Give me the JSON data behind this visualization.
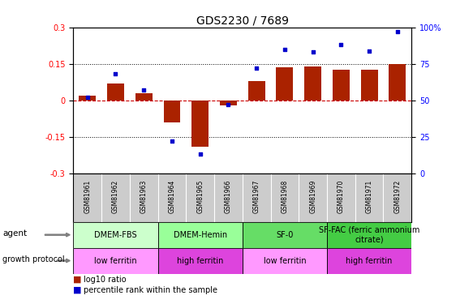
{
  "title": "GDS2230 / 7689",
  "samples": [
    "GSM81961",
    "GSM81962",
    "GSM81963",
    "GSM81964",
    "GSM81965",
    "GSM81966",
    "GSM81967",
    "GSM81968",
    "GSM81969",
    "GSM81970",
    "GSM81971",
    "GSM81972"
  ],
  "log10_ratio": [
    0.02,
    0.07,
    0.03,
    -0.09,
    -0.19,
    -0.02,
    0.08,
    0.135,
    0.14,
    0.125,
    0.125,
    0.15
  ],
  "percentile_rank": [
    52,
    68,
    57,
    22,
    13,
    47,
    72,
    85,
    83,
    88,
    84,
    97
  ],
  "ylim_left": [
    -0.3,
    0.3
  ],
  "ylim_right": [
    0,
    100
  ],
  "yticks_left": [
    -0.3,
    -0.15,
    0,
    0.15,
    0.3
  ],
  "yticks_right": [
    0,
    25,
    50,
    75,
    100
  ],
  "hline_y": [
    0.15,
    -0.15
  ],
  "bar_color": "#aa2200",
  "dot_color": "#0000cc",
  "zero_line_color": "#cc0000",
  "agent_groups": [
    {
      "label": "DMEM-FBS",
      "start": 0,
      "end": 3,
      "color": "#ccffcc"
    },
    {
      "label": "DMEM-Hemin",
      "start": 3,
      "end": 6,
      "color": "#99ff99"
    },
    {
      "label": "SF-0",
      "start": 6,
      "end": 9,
      "color": "#66dd66"
    },
    {
      "label": "SF-FAC (ferric ammonium\ncitrate)",
      "start": 9,
      "end": 12,
      "color": "#44cc44"
    }
  ],
  "growth_groups": [
    {
      "label": "low ferritin",
      "start": 0,
      "end": 3,
      "color": "#ff99ff"
    },
    {
      "label": "high ferritin",
      "start": 3,
      "end": 6,
      "color": "#dd44dd"
    },
    {
      "label": "low ferritin",
      "start": 6,
      "end": 9,
      "color": "#ff99ff"
    },
    {
      "label": "high ferritin",
      "start": 9,
      "end": 12,
      "color": "#dd44dd"
    }
  ],
  "gsm_bg_color": "#cccccc",
  "background_color": "#ffffff",
  "title_fontsize": 10,
  "tick_fontsize": 7,
  "label_fontsize": 7.5,
  "gsm_fontsize": 5.5,
  "group_fontsize": 7,
  "legend_fontsize": 7
}
